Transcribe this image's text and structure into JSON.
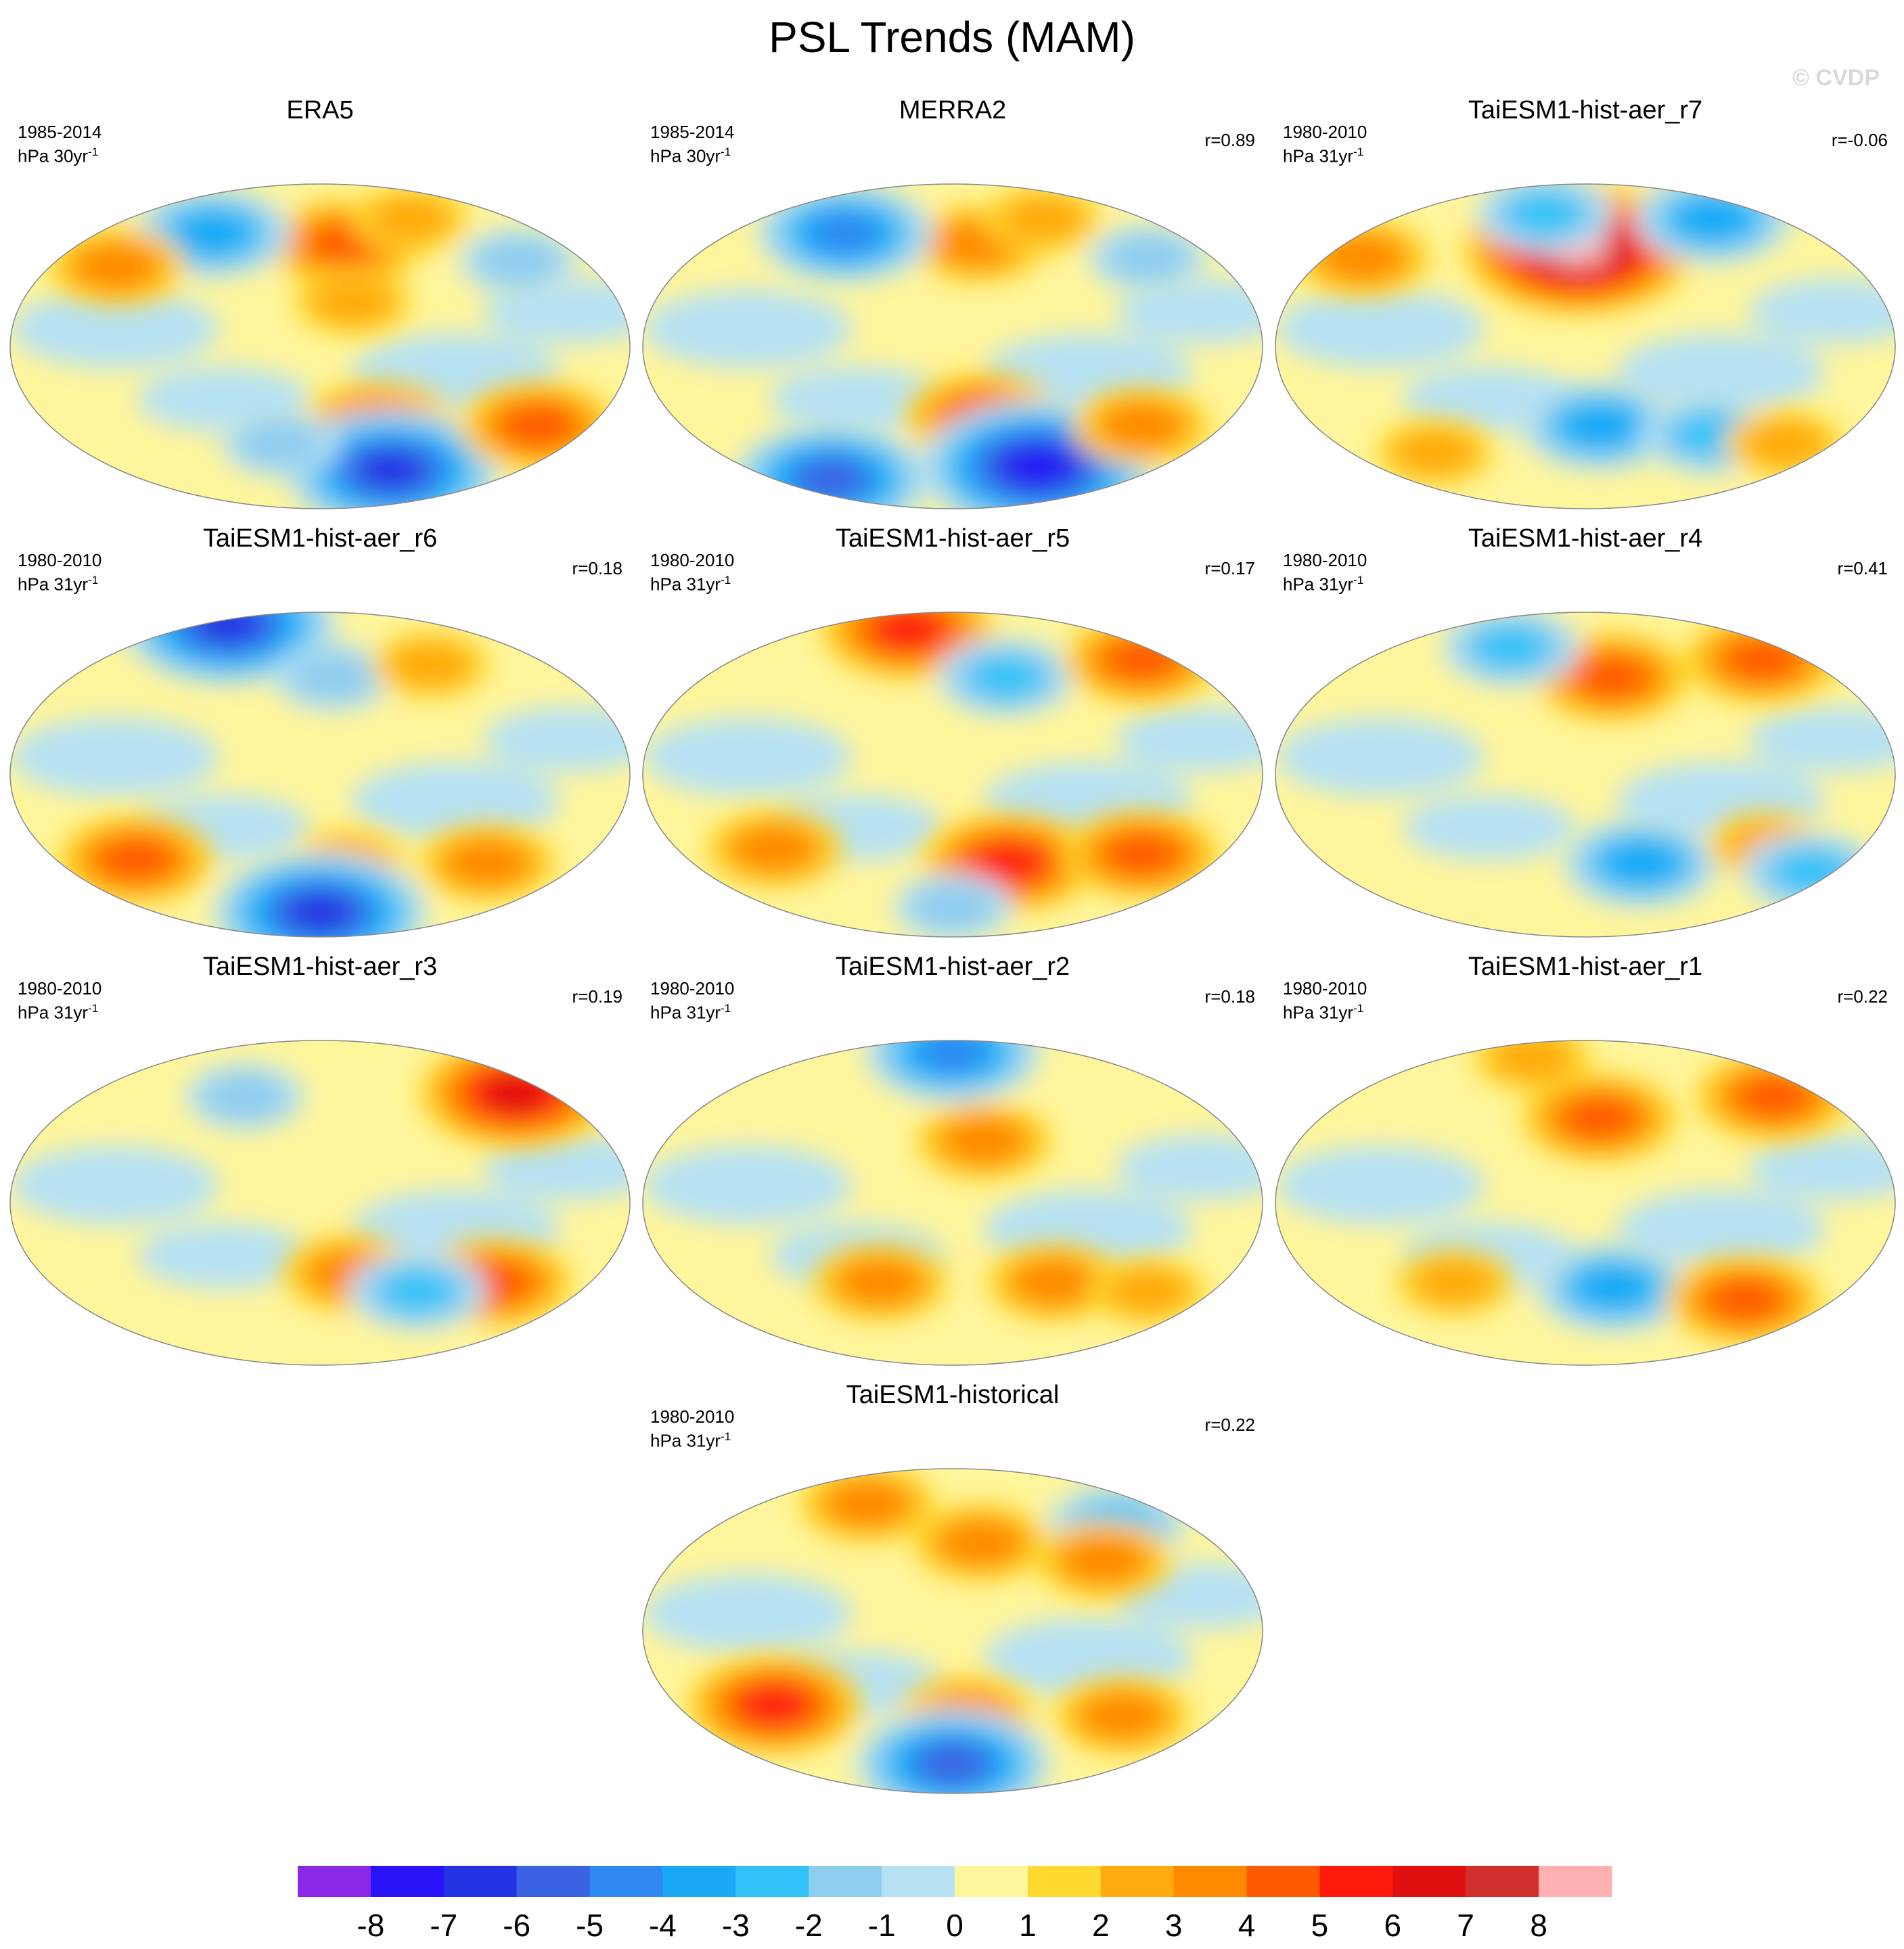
{
  "title": "PSL Trends (MAM)",
  "watermark": "© CVDP",
  "chart_data": {
    "type": "heatmap",
    "projection": "Robinson (global, Pacific-centered)",
    "variable": "PSL trend",
    "panels": [
      {
        "name": "ERA5",
        "period": "1985-2014",
        "units": "hPa 30yr",
        "units_exp": "-1",
        "r": null,
        "features": [
          {
            "lon": 200,
            "lat": 58,
            "value": 4
          },
          {
            "lon": 265,
            "lat": 72,
            "value": 2
          },
          {
            "lon": 90,
            "lat": 64,
            "value": -4
          },
          {
            "lon": 200,
            "lat": 25,
            "value": 2
          },
          {
            "lon": 320,
            "lat": 48,
            "value": -2
          },
          {
            "lon": 220,
            "lat": -45,
            "value": 4
          },
          {
            "lon": 245,
            "lat": -70,
            "value": -7
          },
          {
            "lon": 330,
            "lat": -45,
            "value": 4
          },
          {
            "lon": 150,
            "lat": -55,
            "value": -2
          },
          {
            "lon": 40,
            "lat": 45,
            "value": 3
          }
        ]
      },
      {
        "name": "MERRA2",
        "period": "1985-2014",
        "units": "hPa 30yr",
        "units_exp": "-1",
        "r": "r=0.89",
        "features": [
          {
            "lon": 200,
            "lat": 58,
            "value": 3
          },
          {
            "lon": 265,
            "lat": 72,
            "value": 2
          },
          {
            "lon": 90,
            "lat": 64,
            "value": -5
          },
          {
            "lon": 320,
            "lat": 50,
            "value": -2
          },
          {
            "lon": 200,
            "lat": -40,
            "value": 4
          },
          {
            "lon": 255,
            "lat": -68,
            "value": -8
          },
          {
            "lon": 60,
            "lat": -75,
            "value": -6
          },
          {
            "lon": 310,
            "lat": -45,
            "value": 3
          }
        ]
      },
      {
        "name": "TaiESM1-hist-aer_r7",
        "period": "1980-2010",
        "units": "hPa 31yr",
        "units_exp": "-1",
        "r": "r=-0.06",
        "features": [
          {
            "lon": 175,
            "lat": 55,
            "value": 8
          },
          {
            "lon": 140,
            "lat": 75,
            "value": -3
          },
          {
            "lon": 300,
            "lat": 72,
            "value": -4
          },
          {
            "lon": 20,
            "lat": 50,
            "value": 3
          },
          {
            "lon": 190,
            "lat": -45,
            "value": -4
          },
          {
            "lon": 270,
            "lat": -50,
            "value": -3
          },
          {
            "lon": 330,
            "lat": -55,
            "value": 2
          },
          {
            "lon": 60,
            "lat": -60,
            "value": 2
          }
        ]
      },
      {
        "name": "TaiESM1-hist-aer_r6",
        "period": "1980-2010",
        "units": "hPa 31yr",
        "units_exp": "-1",
        "r": "r=0.18",
        "features": [
          {
            "lon": 70,
            "lat": 85,
            "value": -7
          },
          {
            "lon": 190,
            "lat": 55,
            "value": -2
          },
          {
            "lon": 270,
            "lat": 62,
            "value": 2
          },
          {
            "lon": 50,
            "lat": -48,
            "value": 4
          },
          {
            "lon": 200,
            "lat": -50,
            "value": 2
          },
          {
            "lon": 300,
            "lat": -50,
            "value": 3
          },
          {
            "lon": 180,
            "lat": -78,
            "value": -7
          }
        ]
      },
      {
        "name": "TaiESM1-hist-aer_r5",
        "period": "1980-2010",
        "units": "hPa 31yr",
        "units_exp": "-1",
        "r": "r=0.17",
        "features": [
          {
            "lon": 130,
            "lat": 82,
            "value": 5
          },
          {
            "lon": 220,
            "lat": 55,
            "value": -3
          },
          {
            "lon": 340,
            "lat": 65,
            "value": 4
          },
          {
            "lon": 60,
            "lat": -42,
            "value": 3
          },
          {
            "lon": 220,
            "lat": -50,
            "value": 5
          },
          {
            "lon": 310,
            "lat": -45,
            "value": 4
          },
          {
            "lon": 180,
            "lat": -75,
            "value": -2
          }
        ]
      },
      {
        "name": "TaiESM1-hist-aer_r4",
        "period": "1980-2010",
        "units": "hPa 31yr",
        "units_exp": "-1",
        "r": "r=0.41",
        "features": [
          {
            "lon": 200,
            "lat": 55,
            "value": 4
          },
          {
            "lon": 330,
            "lat": 65,
            "value": 4
          },
          {
            "lon": 110,
            "lat": 72,
            "value": -3
          },
          {
            "lon": 220,
            "lat": -50,
            "value": -4
          },
          {
            "lon": 300,
            "lat": -40,
            "value": 2
          },
          {
            "lon": 350,
            "lat": -55,
            "value": -3
          }
        ]
      },
      {
        "name": "TaiESM1-hist-aer_r3",
        "period": "1980-2010",
        "units": "hPa 31yr",
        "units_exp": "-1",
        "r": "r=0.19",
        "features": [
          {
            "lon": 340,
            "lat": 62,
            "value": 6
          },
          {
            "lon": 120,
            "lat": 60,
            "value": -2
          },
          {
            "lon": 200,
            "lat": -40,
            "value": 3
          },
          {
            "lon": 300,
            "lat": -45,
            "value": 4
          },
          {
            "lon": 250,
            "lat": -50,
            "value": -3
          }
        ]
      },
      {
        "name": "TaiESM1-hist-aer_r2",
        "period": "1980-2010",
        "units": "hPa 31yr",
        "units_exp": "-1",
        "r": "r=0.18",
        "features": [
          {
            "lon": 180,
            "lat": 85,
            "value": -5
          },
          {
            "lon": 200,
            "lat": 35,
            "value": 3
          },
          {
            "lon": 130,
            "lat": -45,
            "value": 3
          },
          {
            "lon": 250,
            "lat": -45,
            "value": 3
          },
          {
            "lon": 320,
            "lat": -50,
            "value": 2
          }
        ]
      },
      {
        "name": "TaiESM1-hist-aer_r1",
        "period": "1980-2010",
        "units": "hPa 31yr",
        "units_exp": "-1",
        "r": "r=0.22",
        "features": [
          {
            "lon": 190,
            "lat": 48,
            "value": 4
          },
          {
            "lon": 330,
            "lat": 60,
            "value": 4
          },
          {
            "lon": 120,
            "lat": 82,
            "value": 2
          },
          {
            "lon": 200,
            "lat": -48,
            "value": -4
          },
          {
            "lon": 300,
            "lat": -55,
            "value": 4
          },
          {
            "lon": 90,
            "lat": -45,
            "value": 2
          }
        ]
      },
      {
        "name": "TaiESM1-historical",
        "period": "1980-2010",
        "units": "hPa 31yr",
        "units_exp": "-1",
        "r": "r=0.22",
        "features": [
          {
            "lon": 100,
            "lat": 72,
            "value": 3
          },
          {
            "lon": 200,
            "lat": 50,
            "value": 3
          },
          {
            "lon": 310,
            "lat": 60,
            "value": -3
          },
          {
            "lon": 280,
            "lat": 40,
            "value": 3
          },
          {
            "lon": 60,
            "lat": -42,
            "value": 5
          },
          {
            "lon": 190,
            "lat": -48,
            "value": 3
          },
          {
            "lon": 300,
            "lat": -48,
            "value": 3
          },
          {
            "lon": 180,
            "lat": -75,
            "value": -6
          }
        ]
      }
    ],
    "colorbar": {
      "levels": [
        -8,
        -7,
        -6,
        -5,
        -4,
        -3,
        -2,
        -1,
        0,
        1,
        2,
        3,
        4,
        5,
        6,
        7,
        8
      ],
      "colors": [
        "#8b28e8",
        "#2812f8",
        "#2233e3",
        "#3a62e2",
        "#2f88f2",
        "#18a8f5",
        "#32c2f8",
        "#8fcdee",
        "#b7e2f3",
        "#fff59c",
        "#ffd92f",
        "#ffab0e",
        "#ff8a00",
        "#ff5a00",
        "#ff1a0a",
        "#e01010",
        "#d12e2e",
        "#ffb0b0"
      ],
      "labels": [
        "-8",
        "-7",
        "-6",
        "-5",
        "-4",
        "-3",
        "-2",
        "-1",
        "0",
        "1",
        "2",
        "3",
        "4",
        "5",
        "6",
        "7",
        "8"
      ]
    }
  }
}
